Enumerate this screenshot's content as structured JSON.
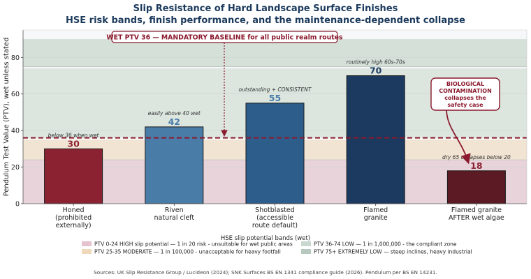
{
  "chart_data": {
    "type": "bar",
    "title": "Slip Resistance of Hard Landscape Surface Finishes",
    "subtitle": "HSE risk bands, finish performance, and the maintenance-dependent collapse",
    "ylabel": "Pendulum Test Value (PTV), wet unless stated",
    "ylim": [
      0,
      90
    ],
    "yticks": [
      0,
      20,
      40,
      60,
      80
    ],
    "grid": true,
    "categories": [
      [
        "Honed",
        "(prohibited",
        "externally)"
      ],
      [
        "Riven",
        "natural cleft"
      ],
      [
        "Shotblasted",
        "(accessible",
        "route default)"
      ],
      [
        "Flamed",
        "granite"
      ],
      [
        "Flamed granite",
        "AFTER wet algae"
      ]
    ],
    "values": [
      30,
      42,
      55,
      70,
      18
    ],
    "bar_colors": [
      "#8b2232",
      "#4a7ca8",
      "#2d5d8a",
      "#1c3a60",
      "#5c1a24"
    ],
    "value_label_colors": [
      "#8b2232",
      "#4a7ca8",
      "#4a7ca8",
      "#1c3a60",
      "#8b2232"
    ],
    "bar_notes": [
      "below 36 when wet",
      "easily above 40 wet",
      "outstanding + CONSISTENT",
      "routinely high 60s-70s",
      "dry 65 collapses below 20"
    ],
    "bands": [
      {
        "from": 0,
        "to": 24,
        "color": "#e8d3db"
      },
      {
        "from": 24,
        "to": 35,
        "color": "#f2e4d3"
      },
      {
        "from": 36,
        "to": 74,
        "color": "#dce6df"
      },
      {
        "from": 75,
        "to": 90,
        "color": "#d4e0d8"
      }
    ],
    "baseline": {
      "value": 36,
      "label": "WET PTV 36 — MANDATORY BASELINE for all public realm routes",
      "color": "#8b1a2e"
    },
    "callout": {
      "lines": [
        "BIOLOGICAL",
        "CONTAMINATION",
        "collapses the",
        "safety case"
      ],
      "color": "#8b1a2e"
    },
    "legend": {
      "title": "HSE slip potential bands (wet)",
      "items": [
        {
          "label": "PTV 0-24  HIGH slip potential — 1 in 20 risk - unsuitable for wet public areas",
          "color": "#e4c3cf"
        },
        {
          "label": "PTV 25-35  MODERATE — 1 in 100,000 - unacceptable for heavy footfall",
          "color": "#f0d8bc"
        },
        {
          "label": "PTV 36-74  LOW — 1 in 1,000,000 - the compliant zone",
          "color": "#c9d8ce"
        },
        {
          "label": "PTV 75+  EXTREMELY LOW — steep inclines, heavy industrial",
          "color": "#b7c9bf"
        }
      ]
    },
    "source": "Sources: UK Slip Resistance Group / Lucideon (2024); SNK Surfaces BS EN 1341 compliance guide (2026). Pendulum per BS EN 14231."
  }
}
